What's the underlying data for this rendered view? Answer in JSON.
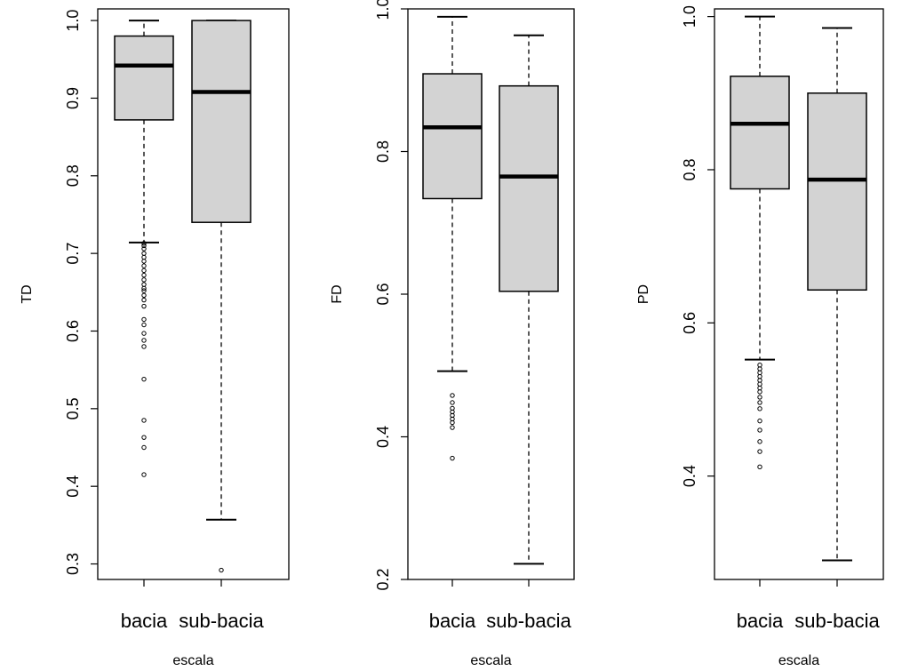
{
  "chart_data": [
    {
      "type": "boxplot",
      "ylabel": "TD",
      "xlabel": "escala",
      "ylim": [
        0.28,
        1.015
      ],
      "yticks": [
        0.3,
        0.4,
        0.5,
        0.6,
        0.7,
        0.8,
        0.9,
        1.0
      ],
      "ytick_labels": [
        "0.3",
        "0.4",
        "0.5",
        "0.6",
        "0.7",
        "0.8",
        "0.9",
        "1.0"
      ],
      "categories": [
        "bacia",
        "sub-bacia"
      ],
      "box_fill": "#d3d3d3",
      "boxes": [
        {
          "name": "bacia",
          "whisker_low": 0.714,
          "q1": 0.872,
          "median": 0.942,
          "q3": 0.98,
          "whisker_high": 1.0,
          "outliers": [
            0.713,
            0.71,
            0.706,
            0.7,
            0.695,
            0.69,
            0.684,
            0.678,
            0.672,
            0.666,
            0.66,
            0.655,
            0.652,
            0.646,
            0.64,
            0.632,
            0.615,
            0.608,
            0.597,
            0.588,
            0.58,
            0.538,
            0.485,
            0.463,
            0.45,
            0.415
          ]
        },
        {
          "name": "sub-bacia",
          "whisker_low": 0.357,
          "q1": 0.74,
          "median": 0.908,
          "q3": 1.0,
          "whisker_high": 1.0,
          "outliers": [
            0.292
          ]
        }
      ]
    },
    {
      "type": "boxplot",
      "ylabel": "FD",
      "xlabel": "escala",
      "ylim": [
        0.2,
        1.0
      ],
      "yticks": [
        0.2,
        0.4,
        0.6,
        0.8,
        1.0
      ],
      "ytick_labels": [
        "0.2",
        "0.4",
        "0.6",
        "0.8",
        "1.0"
      ],
      "categories": [
        "bacia",
        "sub-bacia"
      ],
      "box_fill": "#d3d3d3",
      "boxes": [
        {
          "name": "bacia",
          "whisker_low": 0.492,
          "q1": 0.734,
          "median": 0.834,
          "q3": 0.909,
          "whisker_high": 0.989,
          "outliers": [
            0.458,
            0.448,
            0.44,
            0.435,
            0.43,
            0.425,
            0.42,
            0.413,
            0.37
          ]
        },
        {
          "name": "sub-bacia",
          "whisker_low": 0.222,
          "q1": 0.604,
          "median": 0.765,
          "q3": 0.892,
          "whisker_high": 0.963,
          "outliers": []
        }
      ]
    },
    {
      "type": "boxplot",
      "ylabel": "PD",
      "xlabel": "escala",
      "ylim": [
        0.265,
        1.01
      ],
      "yticks": [
        0.4,
        0.6,
        0.8,
        1.0
      ],
      "ytick_labels": [
        "0.4",
        "0.6",
        "0.8",
        "1.0"
      ],
      "categories": [
        "bacia",
        "sub-bacia"
      ],
      "box_fill": "#d3d3d3",
      "boxes": [
        {
          "name": "bacia",
          "whisker_low": 0.552,
          "q1": 0.775,
          "median": 0.86,
          "q3": 0.922,
          "whisker_high": 1.0,
          "outliers": [
            0.545,
            0.54,
            0.535,
            0.53,
            0.525,
            0.52,
            0.515,
            0.51,
            0.503,
            0.496,
            0.488,
            0.472,
            0.46,
            0.445,
            0.432,
            0.412
          ]
        },
        {
          "name": "sub-bacia",
          "whisker_low": 0.29,
          "q1": 0.643,
          "median": 0.787,
          "q3": 0.9,
          "whisker_high": 0.985,
          "outliers": []
        }
      ]
    }
  ]
}
